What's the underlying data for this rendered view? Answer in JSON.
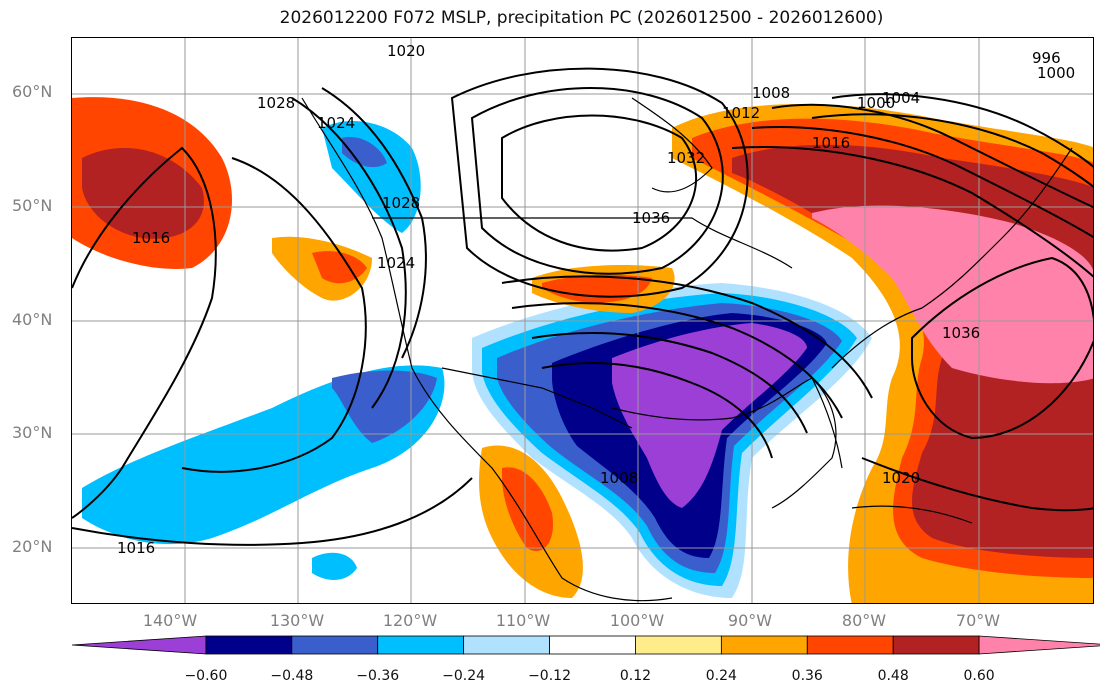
{
  "title": "2026012200 F072 MSLP, precipitation PC (2026012500 - 2026012600)",
  "latitude_labels": [
    "60°N",
    "50°N",
    "40°N",
    "30°N",
    "20°N"
  ],
  "longitude_labels": [
    "140°W",
    "130°W",
    "120°W",
    "110°W",
    "100°W",
    "90°W",
    "80°W",
    "70°W"
  ],
  "colorbar": {
    "ticks": [
      "−0.60",
      "−0.48",
      "−0.36",
      "−0.24",
      "−0.12",
      "0.12",
      "0.24",
      "0.36",
      "0.48",
      "0.60"
    ],
    "colors": [
      "#9b3fd6",
      "#00008b",
      "#3a5fcd",
      "#00bfff",
      "#b0e2ff",
      "#ffffff",
      "#ffec8b",
      "#ffa500",
      "#ff4500",
      "#b22222",
      "#ff82ab"
    ]
  },
  "isobar_labels": [
    "1020",
    "1028",
    "1024",
    "1028",
    "1024",
    "1036",
    "1032",
    "1012",
    "1008",
    "1016",
    "1000",
    "1004",
    "996",
    "1000",
    "1016",
    "1036",
    "1020",
    "1008",
    "1016"
  ]
}
